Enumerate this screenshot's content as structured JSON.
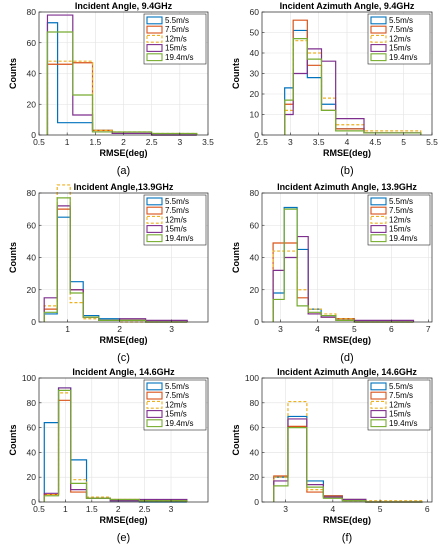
{
  "chart_data": [
    {
      "type": "histogram",
      "panel": "(a)",
      "title": "Incident Angle, 9.4GHz",
      "xlabel": "RMSE(deg)",
      "ylabel": "Counts",
      "xlim": [
        0.5,
        3.5
      ],
      "ylim": [
        0,
        80
      ],
      "xticks": [
        "0.5",
        "1",
        "1.5",
        "2",
        "2.5",
        "3",
        "3.5"
      ],
      "xtick_values": [
        0.5,
        1,
        1.5,
        2,
        2.5,
        3,
        3.5
      ],
      "yticks": [
        "0",
        "20",
        "40",
        "60",
        "80"
      ],
      "ytick_values": [
        0,
        20,
        40,
        60,
        80
      ],
      "grid": true,
      "legend_position": "top-right",
      "series": [
        {
          "name": "5.5m/s",
          "color": "#0072BD",
          "dashed": false,
          "edges": [
            0.65,
            0.83,
            1.45,
            1.8,
            2.5,
            3.3
          ],
          "counts": [
            73,
            8,
            3,
            1,
            0
          ]
        },
        {
          "name": "7.5m/s",
          "color": "#D95319",
          "dashed": false,
          "edges": [
            0.65,
            1.1,
            1.45,
            1.8,
            2.5,
            3.3
          ],
          "counts": [
            46,
            47,
            3,
            1,
            0
          ]
        },
        {
          "name": "12m/s",
          "color": "#EDB120",
          "dashed": true,
          "edges": [
            0.65,
            1.1,
            1.45,
            1.8,
            2.5,
            3.3
          ],
          "counts": [
            48,
            48,
            3,
            2,
            1
          ]
        },
        {
          "name": "15m/s",
          "color": "#7E2F8E",
          "dashed": false,
          "edges": [
            0.65,
            1.1,
            1.45,
            1.8,
            2.5,
            3.3
          ],
          "counts": [
            78,
            13,
            2,
            1,
            0
          ]
        },
        {
          "name": "19.4m/s",
          "color": "#77AC30",
          "dashed": false,
          "edges": [
            0.65,
            1.1,
            1.45,
            1.8,
            2.5,
            3.3
          ],
          "counts": [
            67,
            26,
            2,
            2,
            1
          ]
        }
      ]
    },
    {
      "type": "histogram",
      "panel": "(b)",
      "title": "Incident Azimuth Angle, 9.4GHz",
      "xlabel": "RMSE(deg)",
      "ylabel": "Counts",
      "xlim": [
        2.5,
        5.5
      ],
      "ylim": [
        0,
        60
      ],
      "xticks": [
        "2.5",
        "3",
        "3.5",
        "4",
        "4.5",
        "5",
        "5.5"
      ],
      "xtick_values": [
        2.5,
        3,
        3.5,
        4,
        4.5,
        5,
        5.5
      ],
      "yticks": [
        "0",
        "10",
        "20",
        "30",
        "40",
        "50",
        "60"
      ],
      "ytick_values": [
        0,
        10,
        20,
        30,
        40,
        50,
        60
      ],
      "grid": true,
      "legend_position": "top-right",
      "series": [
        {
          "name": "5.5m/s",
          "color": "#0072BD",
          "dashed": false,
          "edges": [
            2.9,
            3.05,
            3.3,
            3.55,
            3.8,
            4.3,
            5.3
          ],
          "counts": [
            23,
            51,
            28,
            15,
            3,
            1
          ]
        },
        {
          "name": "7.5m/s",
          "color": "#D95319",
          "dashed": false,
          "edges": [
            2.9,
            3.05,
            3.3,
            3.55,
            3.8,
            4.3,
            5.3
          ],
          "counts": [
            15,
            56,
            34,
            12,
            3,
            1
          ]
        },
        {
          "name": "12m/s",
          "color": "#EDB120",
          "dashed": true,
          "edges": [
            2.9,
            3.05,
            3.3,
            3.55,
            3.8,
            4.3,
            5.3
          ],
          "counts": [
            12,
            46,
            40,
            18,
            5,
            2
          ]
        },
        {
          "name": "15m/s",
          "color": "#7E2F8E",
          "dashed": false,
          "edges": [
            2.9,
            3.05,
            3.3,
            3.55,
            3.8,
            4.3,
            5.3
          ],
          "counts": [
            10,
            30,
            42,
            36,
            8,
            1
          ]
        },
        {
          "name": "19.4m/s",
          "color": "#77AC30",
          "dashed": false,
          "edges": [
            2.9,
            3.05,
            3.3,
            3.55,
            3.8,
            4.3,
            5.3
          ],
          "counts": [
            17,
            47,
            37,
            12,
            2,
            1
          ]
        }
      ]
    },
    {
      "type": "histogram",
      "panel": "(c)",
      "title": "Incident Angle,13.9GHz",
      "xlabel": "RMSE(deg)",
      "ylabel": "Counts",
      "xlim": [
        0.45,
        3.7
      ],
      "ylim": [
        0,
        80
      ],
      "xticks": [
        "1",
        "2",
        "3"
      ],
      "xtick_values": [
        1,
        2,
        3
      ],
      "yticks": [
        "0",
        "20",
        "40",
        "60",
        "80"
      ],
      "ytick_values": [
        0,
        20,
        40,
        60,
        80
      ],
      "grid": true,
      "legend_position": "top-right",
      "series": [
        {
          "name": "5.5m/s",
          "color": "#0072BD",
          "dashed": false,
          "edges": [
            0.55,
            0.8,
            1.05,
            1.3,
            1.6,
            2.0,
            2.5,
            3.3
          ],
          "counts": [
            5,
            65,
            25,
            4,
            2,
            1,
            0
          ]
        },
        {
          "name": "7.5m/s",
          "color": "#D95319",
          "dashed": false,
          "edges": [
            0.55,
            0.8,
            1.05,
            1.3,
            1.6,
            2.0,
            2.5,
            3.3
          ],
          "counts": [
            8,
            70,
            20,
            3,
            1,
            1,
            0
          ]
        },
        {
          "name": "12m/s",
          "color": "#EDB120",
          "dashed": true,
          "edges": [
            0.55,
            0.8,
            1.05,
            1.3,
            1.6,
            2.0,
            2.5,
            3.3
          ],
          "counts": [
            10,
            85,
            12,
            2,
            1,
            0,
            0
          ]
        },
        {
          "name": "15m/s",
          "color": "#7E2F8E",
          "dashed": false,
          "edges": [
            0.55,
            0.8,
            1.05,
            1.3,
            1.6,
            2.0,
            2.5,
            3.3
          ],
          "counts": [
            15,
            72,
            20,
            3,
            1,
            2,
            1
          ]
        },
        {
          "name": "19.4m/s",
          "color": "#77AC30",
          "dashed": false,
          "edges": [
            0.55,
            0.8,
            1.05,
            1.3,
            1.6,
            2.0,
            2.5,
            3.3
          ],
          "counts": [
            6,
            77,
            18,
            3,
            1,
            1,
            0
          ]
        }
      ]
    },
    {
      "type": "histogram",
      "panel": "(d)",
      "title": "Incident Azimuth Angle, 13.9GHz",
      "xlabel": "RMSE(deg)",
      "ylabel": "Counts",
      "xlim": [
        2.5,
        7.1
      ],
      "ylim": [
        0,
        80
      ],
      "xticks": [
        "3",
        "4",
        "5",
        "6",
        "7"
      ],
      "xtick_values": [
        3,
        4,
        5,
        6,
        7
      ],
      "yticks": [
        "0",
        "20",
        "40",
        "60",
        "80"
      ],
      "ytick_values": [
        0,
        20,
        40,
        60,
        80
      ],
      "grid": true,
      "legend_position": "top-right",
      "series": [
        {
          "name": "5.5m/s",
          "color": "#0072BD",
          "dashed": false,
          "edges": [
            2.8,
            3.1,
            3.45,
            3.75,
            4.1,
            4.5,
            5.0,
            6.6
          ],
          "counts": [
            18,
            71,
            45,
            8,
            4,
            2,
            0
          ]
        },
        {
          "name": "7.5m/s",
          "color": "#D95319",
          "dashed": false,
          "edges": [
            2.8,
            3.1,
            3.45,
            3.75,
            4.1,
            4.5,
            5.0,
            6.6
          ],
          "counts": [
            49,
            49,
            15,
            5,
            3,
            2,
            0
          ]
        },
        {
          "name": "12m/s",
          "color": "#EDB120",
          "dashed": true,
          "edges": [
            2.8,
            3.1,
            3.45,
            3.75,
            4.1,
            4.5,
            5.0,
            6.6
          ],
          "counts": [
            44,
            44,
            20,
            8,
            5,
            2,
            0
          ]
        },
        {
          "name": "15m/s",
          "color": "#7E2F8E",
          "dashed": false,
          "edges": [
            2.8,
            3.1,
            3.45,
            3.75,
            4.1,
            4.5,
            5.0,
            6.6
          ],
          "counts": [
            32,
            40,
            53,
            5,
            3,
            1,
            1
          ]
        },
        {
          "name": "19.4m/s",
          "color": "#77AC30",
          "dashed": false,
          "edges": [
            2.8,
            3.1,
            3.45,
            3.75,
            4.1,
            4.5,
            5.0,
            6.6
          ],
          "counts": [
            14,
            70,
            10,
            6,
            4,
            1,
            0
          ]
        }
      ]
    },
    {
      "type": "histogram",
      "panel": "(e)",
      "title": "Incident Angle, 14.6GHz",
      "xlabel": "RMSE(deg)",
      "ylabel": "Counts",
      "xlim": [
        0.5,
        3.7
      ],
      "ylim": [
        0,
        100
      ],
      "xticks": [
        "0.5",
        "1",
        "1.5",
        "2",
        "2.5",
        "3"
      ],
      "xtick_values": [
        0.5,
        1,
        1.5,
        2,
        2.5,
        3
      ],
      "yticks": [
        "0",
        "20",
        "40",
        "60",
        "80",
        "100"
      ],
      "ytick_values": [
        0,
        20,
        40,
        60,
        80,
        100
      ],
      "grid": true,
      "legend_position": "top-right",
      "series": [
        {
          "name": "5.5m/s",
          "color": "#0072BD",
          "dashed": false,
          "edges": [
            0.6,
            0.87,
            1.1,
            1.4,
            1.85,
            2.4,
            3.3
          ],
          "counts": [
            64,
            92,
            34,
            3,
            1,
            0
          ]
        },
        {
          "name": "7.5m/s",
          "color": "#D95319",
          "dashed": false,
          "edges": [
            0.6,
            0.87,
            1.1,
            1.4,
            1.85,
            2.4,
            3.3
          ],
          "counts": [
            6,
            82,
            8,
            3,
            2,
            1
          ]
        },
        {
          "name": "12m/s",
          "color": "#EDB120",
          "dashed": true,
          "edges": [
            0.6,
            0.87,
            1.1,
            1.4,
            1.85,
            2.4,
            3.3
          ],
          "counts": [
            6,
            88,
            18,
            4,
            2,
            1
          ]
        },
        {
          "name": "15m/s",
          "color": "#7E2F8E",
          "dashed": false,
          "edges": [
            0.6,
            0.87,
            1.1,
            1.4,
            1.85,
            2.4,
            3.3
          ],
          "counts": [
            7,
            92,
            10,
            3,
            1,
            2
          ]
        },
        {
          "name": "19.4m/s",
          "color": "#77AC30",
          "dashed": false,
          "edges": [
            0.6,
            0.87,
            1.1,
            1.4,
            1.85,
            2.4,
            3.3
          ],
          "counts": [
            5,
            90,
            15,
            3,
            2,
            1
          ]
        }
      ]
    },
    {
      "type": "histogram",
      "panel": "(f)",
      "title": "Incident Azimuth Angle, 14.6GHz",
      "xlabel": "RMSE(deg)",
      "ylabel": "Counts",
      "xlim": [
        2.5,
        6.1
      ],
      "ylim": [
        0,
        100
      ],
      "xticks": [
        "3",
        "4",
        "5",
        "6"
      ],
      "xtick_values": [
        3,
        4,
        5,
        6
      ],
      "yticks": [
        "0",
        "20",
        "40",
        "60",
        "80",
        "100"
      ],
      "ytick_values": [
        0,
        20,
        40,
        60,
        80,
        100
      ],
      "grid": true,
      "legend_position": "top-right",
      "series": [
        {
          "name": "5.5m/s",
          "color": "#0072BD",
          "dashed": false,
          "edges": [
            2.75,
            3.05,
            3.45,
            3.8,
            4.2,
            4.7,
            5.9
          ],
          "counts": [
            20,
            69,
            17,
            5,
            2,
            0
          ]
        },
        {
          "name": "7.5m/s",
          "color": "#D95319",
          "dashed": false,
          "edges": [
            2.75,
            3.05,
            3.45,
            3.8,
            4.2,
            4.7,
            5.9
          ],
          "counts": [
            21,
            61,
            8,
            5,
            2,
            0
          ]
        },
        {
          "name": "12m/s",
          "color": "#EDB120",
          "dashed": true,
          "edges": [
            2.75,
            3.05,
            3.45,
            3.8,
            4.2,
            4.7,
            5.9
          ],
          "counts": [
            20,
            81,
            10,
            4,
            1,
            1
          ]
        },
        {
          "name": "15m/s",
          "color": "#7E2F8E",
          "dashed": false,
          "edges": [
            2.75,
            3.05,
            3.45,
            3.8,
            4.2,
            4.7,
            5.9
          ],
          "counts": [
            17,
            67,
            14,
            4,
            2,
            0
          ]
        },
        {
          "name": "19.4m/s",
          "color": "#77AC30",
          "dashed": false,
          "edges": [
            2.75,
            3.05,
            3.45,
            3.8,
            4.2,
            4.7,
            5.9
          ],
          "counts": [
            13,
            60,
            12,
            3,
            1,
            0
          ]
        }
      ]
    }
  ]
}
